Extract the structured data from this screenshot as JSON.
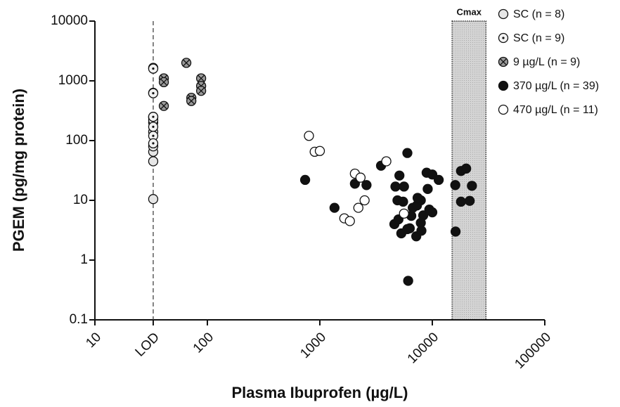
{
  "chart_data": {
    "type": "scatter",
    "xlabel": "Plasma Ibuprofen (µg/L)",
    "ylabel": "PGEM (pg/mg protein)",
    "xscale": "log",
    "yscale": "log",
    "xlim": [
      10,
      100000
    ],
    "ylim": [
      0.1,
      10000
    ],
    "xticks": [
      10,
      {
        "value": 33,
        "label": "LOD"
      },
      100,
      1000,
      10000,
      100000
    ],
    "yticks": [
      0.1,
      1,
      10,
      100,
      1000,
      10000
    ],
    "band": {
      "label": "Cmax",
      "range": [
        15000,
        30000
      ],
      "color": "#d4d4d4"
    },
    "legend": "right",
    "series": [
      {
        "name": "SC (n = 8)",
        "marker": "open",
        "color": "#e6e6e6",
        "x": [
          33,
          33,
          33,
          33,
          33,
          33,
          33,
          33
        ],
        "values": [
          10.5,
          45,
          65,
          80,
          140,
          200,
          240,
          250
        ]
      },
      {
        "name": "SC (n = 9)",
        "marker": "dotted",
        "color": "#f2f2f2",
        "x": [
          33,
          33,
          33,
          33,
          33,
          33,
          33,
          33,
          33
        ],
        "values": [
          1650,
          1600,
          630,
          620,
          220,
          170,
          120,
          250,
          90
        ]
      },
      {
        "name": "9 µg/L (n = 9)",
        "marker": "crossed",
        "color": "#9a9a9a",
        "x": [
          41,
          41,
          41,
          65,
          72,
          72,
          88,
          88,
          88
        ],
        "values": [
          1100,
          950,
          380,
          2000,
          520,
          460,
          1100,
          820,
          680
        ]
      },
      {
        "name": "370 µg/L (n = 39)",
        "marker": "filled",
        "color": "#111111",
        "x": [
          740,
          1350,
          2050,
          2600,
          3500,
          6000,
          5100,
          4700,
          5600,
          4900,
          5500,
          4600,
          5000,
          5300,
          6000,
          6300,
          6100,
          7200,
          8000,
          6700,
          7300,
          7900,
          8300,
          9100,
          8900,
          10000,
          9400,
          10000,
          6500,
          7900,
          11400,
          7400,
          16100,
          16000,
          18000,
          20000,
          18000,
          21500,
          22500
        ],
        "values": [
          22,
          7.5,
          19,
          18,
          38,
          62,
          26,
          17,
          17,
          10,
          9.5,
          4,
          4.8,
          2.8,
          3.3,
          3.4,
          0.45,
          2.5,
          3.1,
          7.5,
          8.2,
          10,
          5.6,
          15.5,
          29,
          27,
          7,
          6.3,
          5.5,
          4.2,
          22,
          11,
          3,
          18,
          31,
          34,
          9.5,
          9.8,
          17.5
        ]
      },
      {
        "name": "470 µg/L (n = 11)",
        "marker": "open",
        "color": "#ffffff",
        "x": [
          800,
          900,
          1000,
          2050,
          2300,
          3900,
          2200,
          2500,
          1650,
          1850,
          5600
        ],
        "values": [
          120,
          65,
          67,
          28,
          24,
          45,
          7.5,
          10,
          5,
          4.5,
          6
        ]
      }
    ]
  }
}
